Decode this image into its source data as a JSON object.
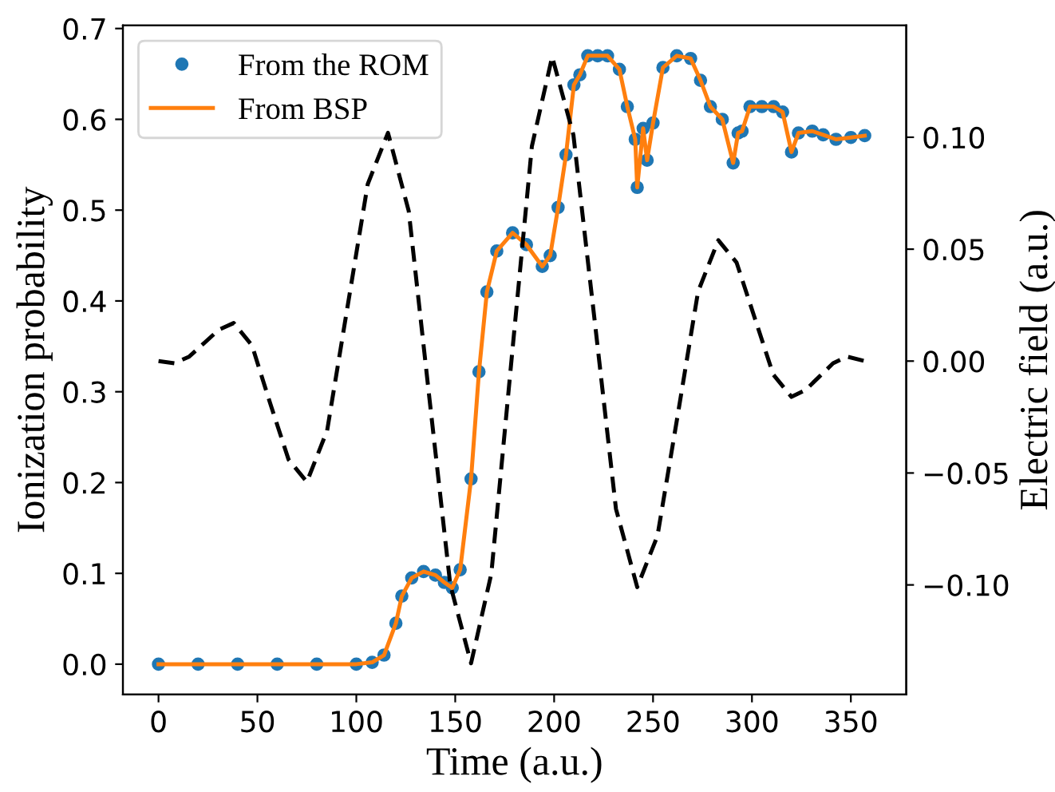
{
  "chart_data": {
    "type": "line",
    "xlabel": "Time (a.u.)",
    "ylabel": "Ionization probability",
    "y2label": "Electric field (a.u.)",
    "xlim": [
      -18,
      378
    ],
    "xticks": [
      0,
      50,
      100,
      150,
      200,
      250,
      300,
      350
    ],
    "ylim": [
      -0.0335,
      0.7035
    ],
    "yticks": [
      {
        "value": 0,
        "label": "0.0"
      },
      {
        "value": 0.1,
        "label": "0.1"
      },
      {
        "value": 0.2,
        "label": "0.2"
      },
      {
        "value": 0.3,
        "label": "0.3"
      },
      {
        "value": 0.4,
        "label": "0.4"
      },
      {
        "value": 0.5,
        "label": "0.5"
      },
      {
        "value": 0.6,
        "label": "0.6"
      },
      {
        "value": 0.7,
        "label": "0.7"
      }
    ],
    "y2lim": [
      -0.149,
      0.15
    ],
    "y2ticks": [
      {
        "value": -0.1,
        "label": "−0.10"
      },
      {
        "value": -0.05,
        "label": "−0.05"
      },
      {
        "value": 0,
        "label": "0.00"
      },
      {
        "value": 0.05,
        "label": "0.05"
      },
      {
        "value": 0.1,
        "label": "0.10"
      }
    ],
    "grid": false,
    "legend": "top left",
    "series": [
      {
        "name": "From the ROM",
        "type": "scatter",
        "marker": "circle",
        "color": "#1f77b4",
        "x": [
          0,
          20,
          40,
          60,
          80,
          100,
          108,
          114,
          120,
          123,
          128,
          134,
          140,
          144.5,
          148.5,
          152.5,
          158,
          162,
          166,
          171,
          179,
          186,
          194,
          198,
          202,
          206,
          210,
          213,
          217,
          222,
          227,
          233,
          237,
          241,
          242,
          245,
          247,
          250,
          255,
          262,
          269,
          274,
          279,
          285,
          290.5,
          293,
          295,
          299,
          305,
          311,
          315.5,
          320,
          323.5,
          330.5,
          336,
          342.5,
          350,
          357
        ],
        "values": [
          0,
          0,
          0,
          0,
          0,
          0,
          0.002,
          0.01,
          0.045,
          0.075,
          0.095,
          0.102,
          0.098,
          0.09,
          0.084,
          0.104,
          0.204,
          0.322,
          0.41,
          0.455,
          0.475,
          0.462,
          0.438,
          0.45,
          0.503,
          0.561,
          0.638,
          0.649,
          0.67,
          0.67,
          0.67,
          0.655,
          0.614,
          0.578,
          0.525,
          0.59,
          0.555,
          0.596,
          0.657,
          0.67,
          0.667,
          0.643,
          0.614,
          0.6,
          0.552,
          0.585,
          0.587,
          0.614,
          0.614,
          0.614,
          0.608,
          0.564,
          0.585,
          0.587,
          0.583,
          0.578,
          0.58,
          0.582
        ]
      },
      {
        "name": "From BSP",
        "marker": "none",
        "color": "#ff7f0e",
        "x": [
          0,
          20,
          40,
          60,
          80,
          100,
          108,
          114,
          120,
          123,
          128,
          134,
          140,
          144.5,
          148.5,
          152.5,
          158,
          162,
          166,
          171,
          179,
          186,
          194,
          198,
          202,
          206,
          210,
          213,
          217,
          222,
          227,
          233,
          237,
          241,
          242,
          245,
          247,
          250,
          255,
          262,
          269,
          274,
          279,
          285,
          290.5,
          293,
          295,
          299,
          305,
          311,
          315.5,
          320,
          323.5,
          330.5,
          336,
          342.5,
          350,
          357
        ],
        "values": [
          0,
          0,
          0,
          0,
          0,
          0,
          0.002,
          0.01,
          0.045,
          0.075,
          0.095,
          0.102,
          0.098,
          0.09,
          0.084,
          0.104,
          0.204,
          0.322,
          0.41,
          0.455,
          0.475,
          0.462,
          0.438,
          0.45,
          0.503,
          0.561,
          0.638,
          0.649,
          0.67,
          0.67,
          0.67,
          0.655,
          0.614,
          0.578,
          0.525,
          0.59,
          0.555,
          0.596,
          0.657,
          0.67,
          0.667,
          0.643,
          0.614,
          0.6,
          0.552,
          0.585,
          0.587,
          0.614,
          0.614,
          0.614,
          0.608,
          0.564,
          0.585,
          0.587,
          0.583,
          0.578,
          0.58,
          0.582
        ]
      },
      {
        "axis": "y2",
        "marker": "none",
        "line_style": "dashed",
        "color": "#000000",
        "x": [
          0,
          8,
          15.5,
          23,
          30.5,
          38,
          47.25,
          56.5,
          65.75,
          75,
          85.25,
          95.5,
          105.75,
          116,
          126.5,
          137,
          147.5,
          158,
          168.25,
          178.5,
          188.75,
          199,
          209.75,
          220.5,
          231.25,
          242,
          252.25,
          262.5,
          272.75,
          283,
          292.25,
          301.5,
          310.75,
          320,
          327,
          334,
          341,
          348,
          357
        ],
        "values": [
          0,
          -0.001,
          0.002,
          0.008,
          0.014,
          0.017,
          0.007,
          -0.019,
          -0.044,
          -0.054,
          -0.031,
          0.024,
          0.079,
          0.102,
          0.067,
          -0.017,
          -0.1,
          -0.135,
          -0.095,
          0.001,
          0.096,
          0.136,
          0.101,
          0.018,
          -0.066,
          -0.101,
          -0.078,
          -0.024,
          0.031,
          0.054,
          0.044,
          0.019,
          -0.006,
          -0.016,
          -0.013,
          -0.007,
          -0.001,
          0.002,
          0
        ]
      }
    ]
  }
}
